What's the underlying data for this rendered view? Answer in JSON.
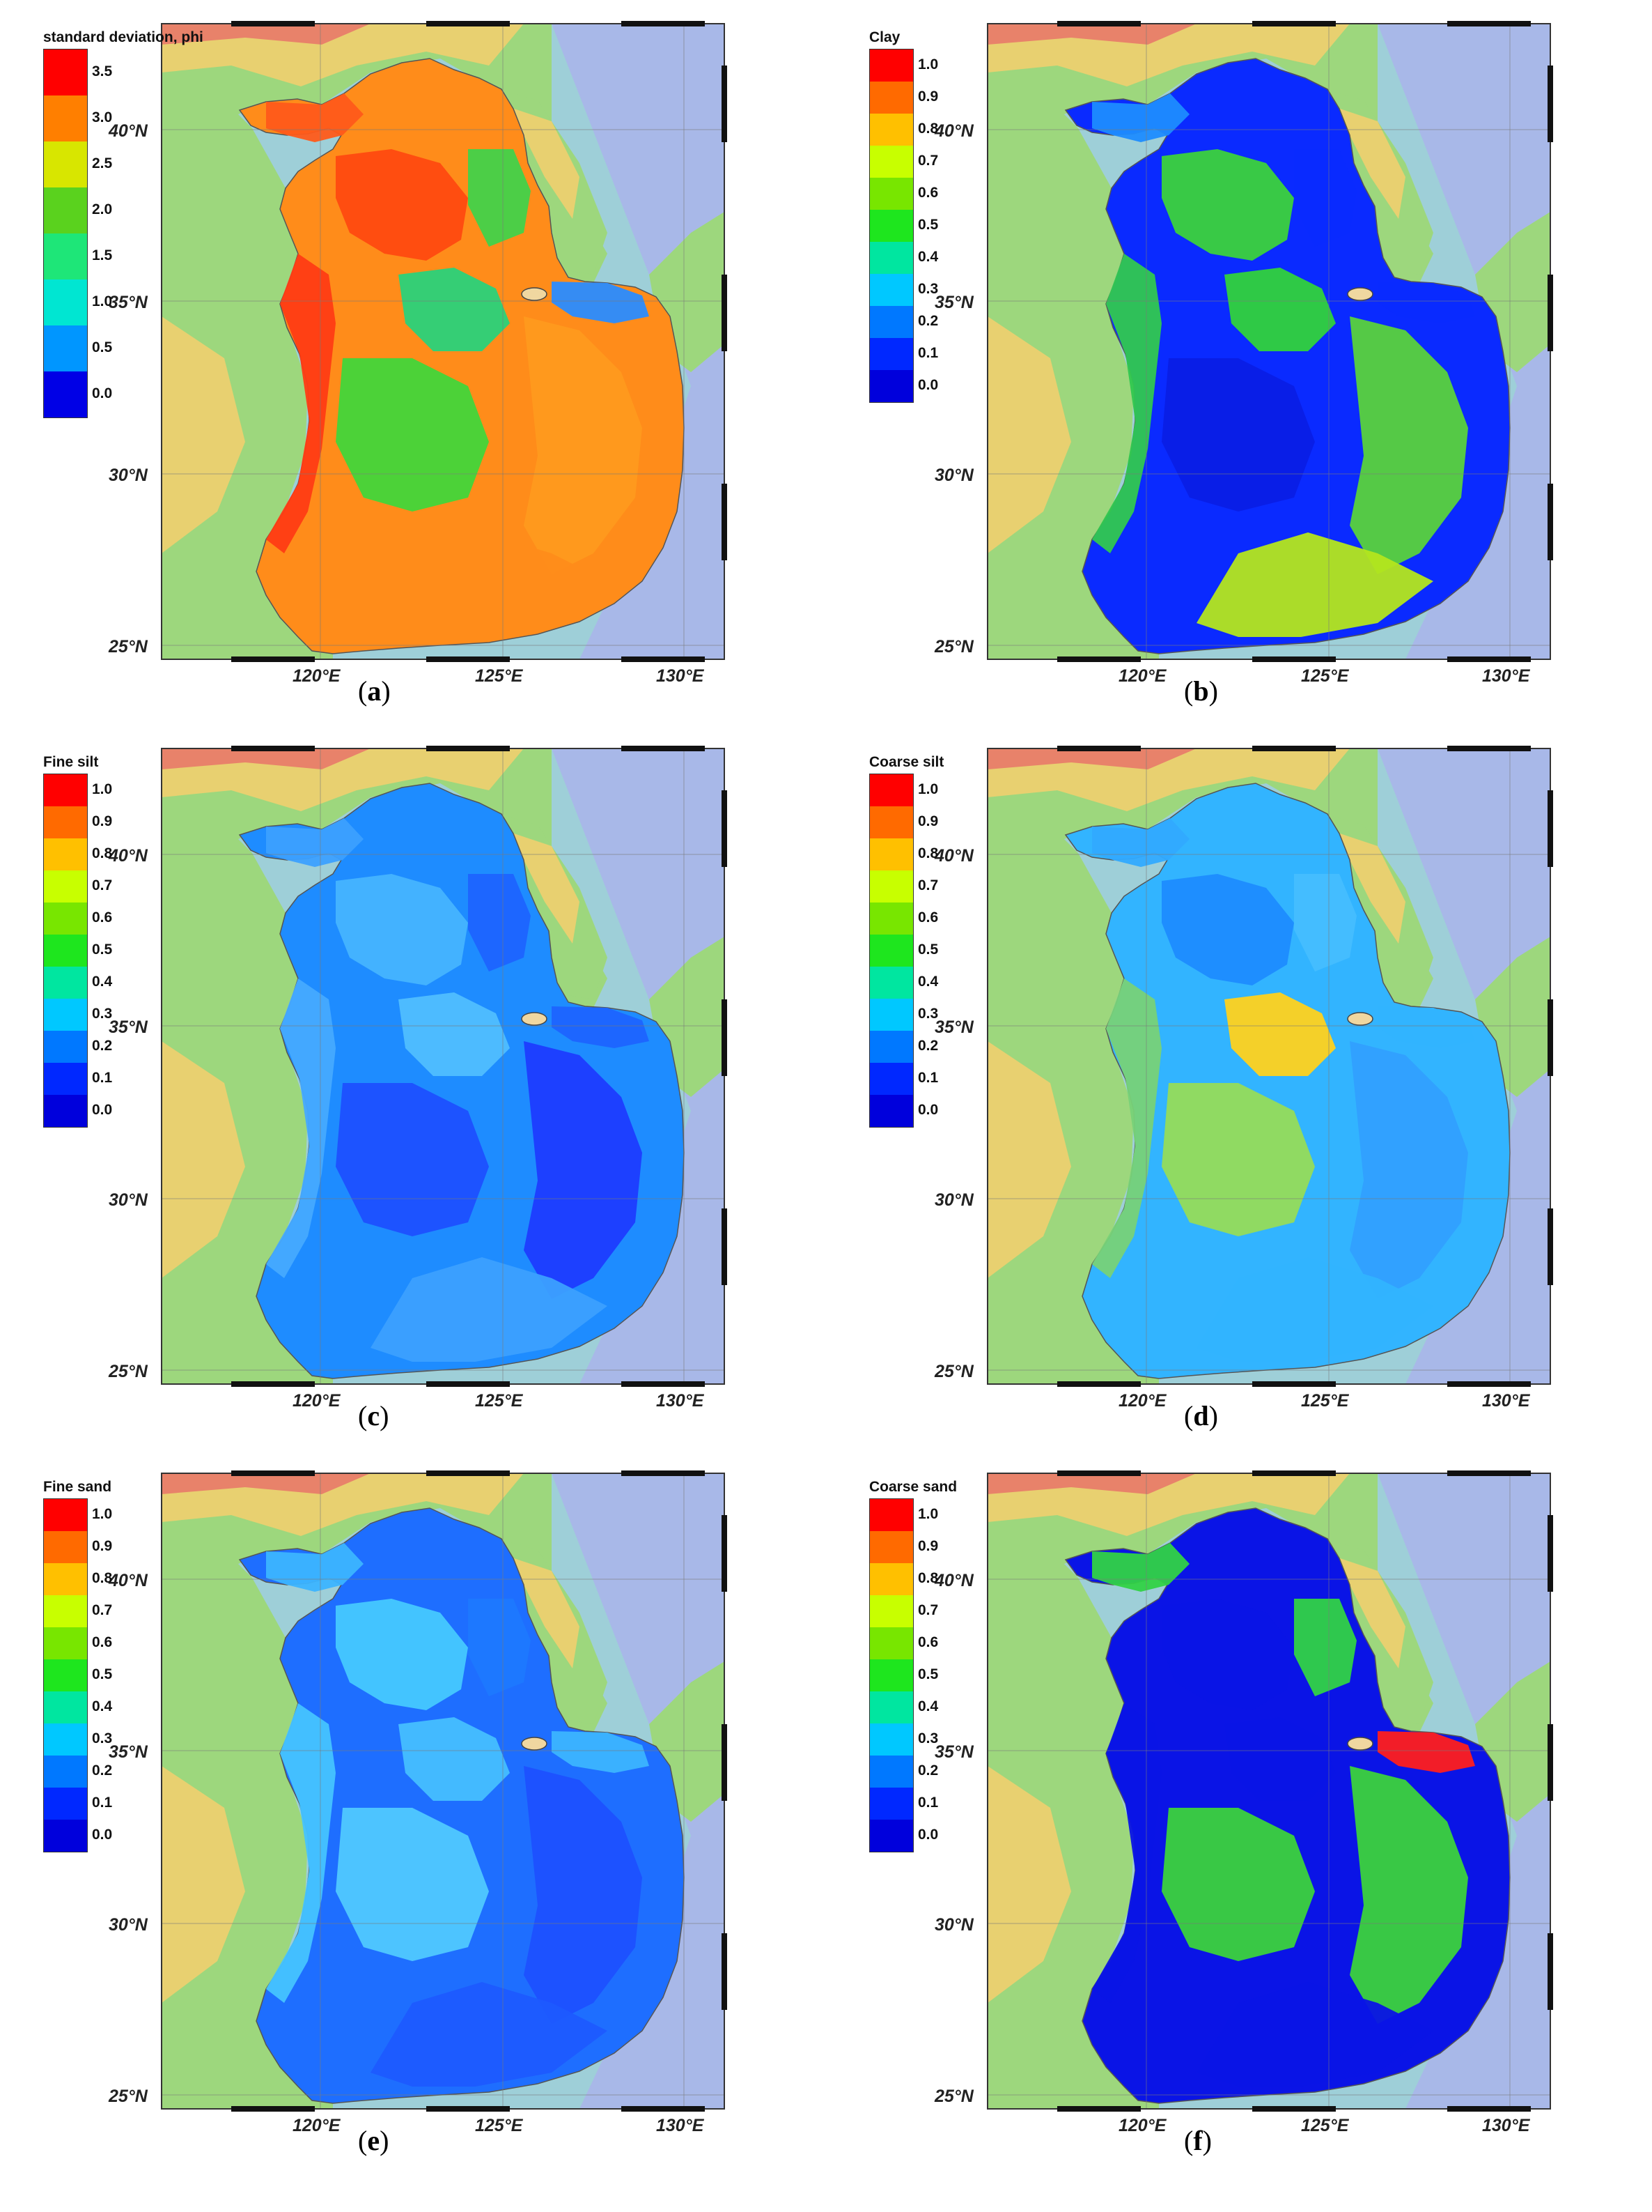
{
  "panels": [
    {
      "key": "a",
      "legend_title": "standard deviation, phi",
      "ticks": [
        "3.5",
        "3.0",
        "2.5",
        "2.0",
        "1.5",
        "1.0",
        "0.5",
        "0.0"
      ],
      "caption_letter": "a",
      "scheme": "sd"
    },
    {
      "key": "b",
      "legend_title": "Clay",
      "ticks": [
        "1.0",
        "0.9",
        "0.8",
        "0.7",
        "0.6",
        "0.5",
        "0.4",
        "0.3",
        "0.2",
        "0.1",
        "0.0"
      ],
      "caption_letter": "b",
      "scheme": "clay"
    },
    {
      "key": "c",
      "legend_title": "Fine silt",
      "ticks": [
        "1.0",
        "0.9",
        "0.8",
        "0.7",
        "0.6",
        "0.5",
        "0.4",
        "0.3",
        "0.2",
        "0.1",
        "0.0"
      ],
      "caption_letter": "c",
      "scheme": "finesilt"
    },
    {
      "key": "d",
      "legend_title": "Coarse silt",
      "ticks": [
        "1.0",
        "0.9",
        "0.8",
        "0.7",
        "0.6",
        "0.5",
        "0.4",
        "0.3",
        "0.2",
        "0.1",
        "0.0"
      ],
      "caption_letter": "d",
      "scheme": "coarsesilt"
    },
    {
      "key": "e",
      "legend_title": "Fine sand",
      "ticks": [
        "1.0",
        "0.9",
        "0.8",
        "0.7",
        "0.6",
        "0.5",
        "0.4",
        "0.3",
        "0.2",
        "0.1",
        "0.0"
      ],
      "caption_letter": "e",
      "scheme": "finesand"
    },
    {
      "key": "f",
      "legend_title": "Coarse sand",
      "ticks": [
        "1.0",
        "0.9",
        "0.8",
        "0.7",
        "0.6",
        "0.5",
        "0.4",
        "0.3",
        "0.2",
        "0.1",
        "0.0"
      ],
      "caption_letter": "f",
      "scheme": "coarsesand"
    }
  ],
  "latitude_labels": [
    "40°N",
    "35°N",
    "30°N",
    "25°N"
  ],
  "longitude_labels": [
    "120°E",
    "125°E",
    "130°E"
  ],
  "legend_colors_11": [
    "#ff0000",
    "#ff6a00",
    "#ffc000",
    "#c8ff00",
    "#78e600",
    "#1ee61e",
    "#00e6a0",
    "#00c8ff",
    "#0078ff",
    "#0028ff",
    "#0000dc"
  ],
  "legend_colors_8": [
    "#ff0000",
    "#ff7f00",
    "#d8e600",
    "#5ad21e",
    "#1ee678",
    "#00e6d2",
    "#0096ff",
    "#0000e6"
  ],
  "land_colors": {
    "lowland": "#9dd77d",
    "highland": "#e8d070",
    "peak": "#e8826a",
    "deep_sea": "#a8b8e8",
    "shelf_sea": "#9ecfd8"
  }
}
